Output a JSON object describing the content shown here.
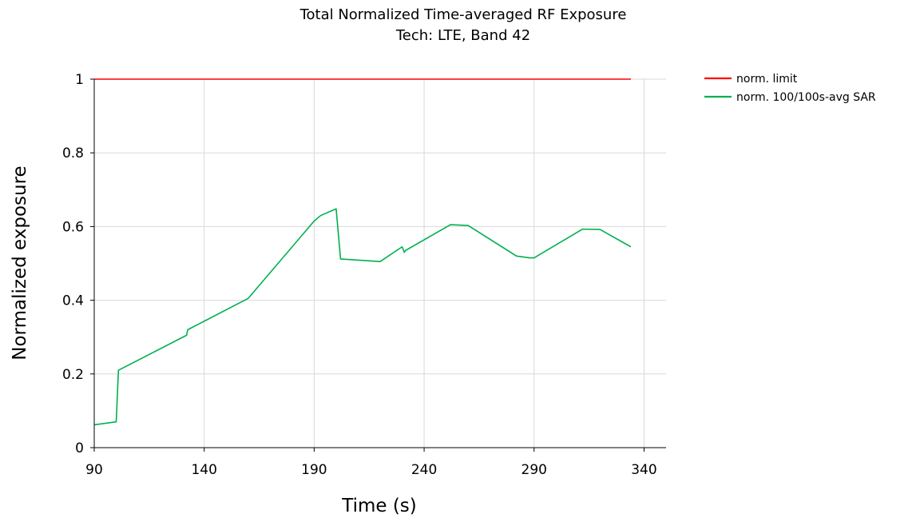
{
  "chart_data": {
    "type": "line",
    "title": "Total Normalized Time-averaged RF Exposure",
    "subtitle": "Tech: LTE, Band 42",
    "xlabel": "Time (s)",
    "ylabel": "Normalized exposure",
    "xlim": [
      90,
      350
    ],
    "ylim": [
      0,
      1
    ],
    "xticks": [
      90,
      140,
      190,
      240,
      290,
      340
    ],
    "yticks": [
      0,
      0.2,
      0.4,
      0.6,
      0.8,
      1
    ],
    "ytick_labels": [
      "0",
      "0.2",
      "0.4",
      "0.6",
      "0.8",
      "1"
    ],
    "grid": true,
    "legend_position": "top-right outside",
    "series": [
      {
        "name": "norm. limit",
        "color": "#ff0000",
        "x": [
          90,
          334
        ],
        "y": [
          1,
          1
        ]
      },
      {
        "name": "norm. 100/100s-avg SAR",
        "color": "#00b050",
        "x": [
          90,
          100,
          101,
          132,
          132.5,
          160,
          190,
          193,
          200,
          202,
          220,
          230,
          231,
          231.5,
          252,
          260,
          282,
          288,
          290,
          312,
          320,
          334
        ],
        "y": [
          0.062,
          0.07,
          0.21,
          0.305,
          0.32,
          0.405,
          0.615,
          0.63,
          0.648,
          0.512,
          0.505,
          0.545,
          0.53,
          0.535,
          0.605,
          0.603,
          0.52,
          0.515,
          0.515,
          0.593,
          0.592,
          0.545
        ]
      }
    ]
  }
}
